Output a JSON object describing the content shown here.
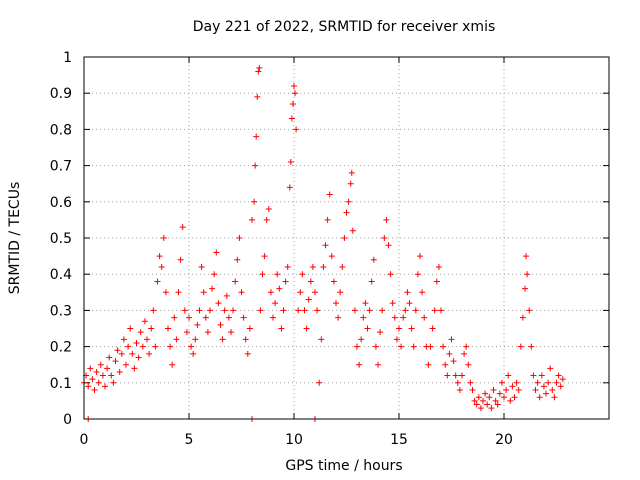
{
  "chart_data": {
    "type": "scatter",
    "title": "Day 221 of 2022, SRMTID for receiver xmis",
    "xlabel": "GPS time / hours",
    "ylabel": "SRMTID / TECUs",
    "xlim": [
      0,
      25
    ],
    "ylim": [
      0,
      1
    ],
    "xticks": [
      0,
      5,
      10,
      15,
      20
    ],
    "yticks": [
      0,
      0.1,
      0.2,
      0.3,
      0.4,
      0.5,
      0.6,
      0.7,
      0.8,
      0.9,
      1
    ],
    "xtick_labels": [
      "0",
      "5",
      "10",
      "15",
      "20"
    ],
    "ytick_labels": [
      "0",
      "0.1",
      "0.2",
      "0.3",
      "0.4",
      "0.5",
      "0.6",
      "0.7",
      "0.8",
      "0.9",
      "1"
    ],
    "grid": true,
    "marker": "+",
    "color": "#ff0000",
    "series": [
      {
        "name": "SRMTID",
        "points": [
          [
            0.0,
            0.1
          ],
          [
            0.1,
            0.12
          ],
          [
            0.2,
            0.09
          ],
          [
            0.3,
            0.14
          ],
          [
            0.4,
            0.11
          ],
          [
            0.5,
            0.08
          ],
          [
            0.6,
            0.13
          ],
          [
            0.7,
            0.1
          ],
          [
            0.8,
            0.15
          ],
          [
            0.9,
            0.12
          ],
          [
            1.0,
            0.09
          ],
          [
            1.1,
            0.14
          ],
          [
            1.2,
            0.17
          ],
          [
            1.3,
            0.12
          ],
          [
            1.4,
            0.1
          ],
          [
            1.5,
            0.16
          ],
          [
            1.6,
            0.19
          ],
          [
            1.7,
            0.13
          ],
          [
            1.8,
            0.18
          ],
          [
            1.9,
            0.22
          ],
          [
            2.0,
            0.15
          ],
          [
            2.1,
            0.2
          ],
          [
            2.2,
            0.25
          ],
          [
            2.3,
            0.18
          ],
          [
            2.4,
            0.14
          ],
          [
            2.5,
            0.21
          ],
          [
            2.6,
            0.17
          ],
          [
            2.7,
            0.24
          ],
          [
            2.8,
            0.2
          ],
          [
            2.9,
            0.27
          ],
          [
            3.0,
            0.22
          ],
          [
            3.1,
            0.18
          ],
          [
            3.2,
            0.25
          ],
          [
            3.3,
            0.3
          ],
          [
            3.4,
            0.2
          ],
          [
            3.5,
            0.38
          ],
          [
            3.6,
            0.45
          ],
          [
            3.7,
            0.42
          ],
          [
            3.8,
            0.5
          ],
          [
            3.9,
            0.35
          ],
          [
            4.0,
            0.25
          ],
          [
            4.1,
            0.2
          ],
          [
            4.2,
            0.15
          ],
          [
            4.3,
            0.28
          ],
          [
            4.4,
            0.22
          ],
          [
            4.5,
            0.35
          ],
          [
            4.6,
            0.44
          ],
          [
            4.7,
            0.53
          ],
          [
            4.8,
            0.3
          ],
          [
            4.9,
            0.24
          ],
          [
            5.0,
            0.28
          ],
          [
            5.1,
            0.2
          ],
          [
            5.2,
            0.18
          ],
          [
            5.3,
            0.22
          ],
          [
            5.4,
            0.26
          ],
          [
            5.5,
            0.3
          ],
          [
            5.6,
            0.42
          ],
          [
            5.7,
            0.35
          ],
          [
            5.8,
            0.28
          ],
          [
            5.9,
            0.24
          ],
          [
            6.0,
            0.3
          ],
          [
            6.1,
            0.36
          ],
          [
            6.2,
            0.4
          ],
          [
            6.3,
            0.46
          ],
          [
            6.4,
            0.32
          ],
          [
            6.5,
            0.26
          ],
          [
            6.6,
            0.22
          ],
          [
            6.7,
            0.3
          ],
          [
            6.8,
            0.34
          ],
          [
            6.9,
            0.28
          ],
          [
            7.0,
            0.24
          ],
          [
            7.1,
            0.3
          ],
          [
            7.2,
            0.38
          ],
          [
            7.3,
            0.44
          ],
          [
            7.4,
            0.5
          ],
          [
            7.5,
            0.35
          ],
          [
            7.6,
            0.28
          ],
          [
            7.7,
            0.22
          ],
          [
            7.8,
            0.18
          ],
          [
            7.9,
            0.25
          ],
          [
            8.0,
            0.55
          ],
          [
            8.1,
            0.6
          ],
          [
            8.15,
            0.7
          ],
          [
            8.2,
            0.78
          ],
          [
            8.25,
            0.89
          ],
          [
            8.3,
            0.96
          ],
          [
            8.35,
            0.97
          ],
          [
            8.4,
            0.3
          ],
          [
            8.5,
            0.4
          ],
          [
            8.6,
            0.45
          ],
          [
            8.7,
            0.55
          ],
          [
            8.8,
            0.58
          ],
          [
            8.9,
            0.35
          ],
          [
            9.0,
            0.28
          ],
          [
            9.1,
            0.32
          ],
          [
            9.2,
            0.4
          ],
          [
            9.3,
            0.36
          ],
          [
            9.4,
            0.25
          ],
          [
            9.5,
            0.3
          ],
          [
            9.6,
            0.38
          ],
          [
            9.7,
            0.42
          ],
          [
            9.8,
            0.64
          ],
          [
            9.85,
            0.71
          ],
          [
            9.9,
            0.83
          ],
          [
            9.95,
            0.87
          ],
          [
            10.0,
            0.92
          ],
          [
            10.05,
            0.9
          ],
          [
            10.1,
            0.8
          ],
          [
            10.2,
            0.3
          ],
          [
            10.3,
            0.35
          ],
          [
            10.4,
            0.4
          ],
          [
            10.5,
            0.3
          ],
          [
            10.6,
            0.25
          ],
          [
            10.7,
            0.33
          ],
          [
            10.8,
            0.38
          ],
          [
            10.9,
            0.42
          ],
          [
            11.0,
            0.35
          ],
          [
            11.1,
            0.3
          ],
          [
            11.2,
            0.1
          ],
          [
            11.3,
            0.22
          ],
          [
            11.4,
            0.42
          ],
          [
            11.5,
            0.48
          ],
          [
            11.6,
            0.55
          ],
          [
            11.7,
            0.62
          ],
          [
            11.8,
            0.45
          ],
          [
            11.9,
            0.38
          ],
          [
            12.0,
            0.32
          ],
          [
            12.1,
            0.28
          ],
          [
            12.2,
            0.35
          ],
          [
            12.3,
            0.42
          ],
          [
            12.4,
            0.5
          ],
          [
            12.5,
            0.57
          ],
          [
            12.6,
            0.6
          ],
          [
            12.7,
            0.65
          ],
          [
            12.75,
            0.68
          ],
          [
            12.8,
            0.52
          ],
          [
            12.9,
            0.3
          ],
          [
            13.0,
            0.2
          ],
          [
            13.1,
            0.15
          ],
          [
            13.2,
            0.22
          ],
          [
            13.3,
            0.28
          ],
          [
            13.4,
            0.32
          ],
          [
            13.5,
            0.25
          ],
          [
            13.6,
            0.3
          ],
          [
            13.7,
            0.38
          ],
          [
            13.8,
            0.44
          ],
          [
            13.9,
            0.2
          ],
          [
            14.0,
            0.15
          ],
          [
            14.1,
            0.24
          ],
          [
            14.2,
            0.3
          ],
          [
            14.3,
            0.5
          ],
          [
            14.4,
            0.55
          ],
          [
            14.5,
            0.48
          ],
          [
            14.6,
            0.4
          ],
          [
            14.7,
            0.32
          ],
          [
            14.8,
            0.28
          ],
          [
            14.9,
            0.22
          ],
          [
            15.0,
            0.25
          ],
          [
            15.1,
            0.2
          ],
          [
            15.2,
            0.28
          ],
          [
            15.3,
            0.3
          ],
          [
            15.4,
            0.35
          ],
          [
            15.5,
            0.32
          ],
          [
            15.6,
            0.25
          ],
          [
            15.7,
            0.2
          ],
          [
            15.8,
            0.3
          ],
          [
            15.9,
            0.4
          ],
          [
            16.0,
            0.45
          ],
          [
            16.1,
            0.35
          ],
          [
            16.2,
            0.28
          ],
          [
            16.3,
            0.2
          ],
          [
            16.4,
            0.15
          ],
          [
            16.5,
            0.2
          ],
          [
            16.6,
            0.25
          ],
          [
            16.7,
            0.3
          ],
          [
            16.8,
            0.38
          ],
          [
            16.9,
            0.42
          ],
          [
            17.0,
            0.3
          ],
          [
            17.1,
            0.2
          ],
          [
            17.2,
            0.15
          ],
          [
            17.3,
            0.12
          ],
          [
            17.4,
            0.18
          ],
          [
            17.5,
            0.22
          ],
          [
            17.6,
            0.16
          ],
          [
            17.7,
            0.12
          ],
          [
            17.8,
            0.1
          ],
          [
            17.9,
            0.08
          ],
          [
            18.0,
            0.12
          ],
          [
            18.1,
            0.18
          ],
          [
            18.2,
            0.2
          ],
          [
            18.3,
            0.15
          ],
          [
            18.4,
            0.1
          ],
          [
            18.5,
            0.08
          ],
          [
            18.6,
            0.05
          ],
          [
            18.7,
            0.04
          ],
          [
            18.8,
            0.06
          ],
          [
            18.9,
            0.03
          ],
          [
            19.0,
            0.05
          ],
          [
            19.1,
            0.07
          ],
          [
            19.2,
            0.04
          ],
          [
            19.3,
            0.06
          ],
          [
            19.4,
            0.03
          ],
          [
            19.5,
            0.08
          ],
          [
            19.6,
            0.05
          ],
          [
            19.7,
            0.04
          ],
          [
            19.8,
            0.07
          ],
          [
            19.9,
            0.1
          ],
          [
            20.0,
            0.06
          ],
          [
            20.1,
            0.08
          ],
          [
            20.2,
            0.12
          ],
          [
            20.3,
            0.05
          ],
          [
            20.4,
            0.09
          ],
          [
            20.5,
            0.06
          ],
          [
            20.6,
            0.1
          ],
          [
            20.7,
            0.08
          ],
          [
            20.8,
            0.2
          ],
          [
            20.9,
            0.28
          ],
          [
            21.0,
            0.36
          ],
          [
            21.05,
            0.45
          ],
          [
            21.1,
            0.4
          ],
          [
            21.2,
            0.3
          ],
          [
            21.3,
            0.2
          ],
          [
            21.4,
            0.12
          ],
          [
            21.5,
            0.08
          ],
          [
            21.6,
            0.1
          ],
          [
            21.7,
            0.06
          ],
          [
            21.8,
            0.12
          ],
          [
            21.9,
            0.09
          ],
          [
            22.0,
            0.07
          ],
          [
            22.1,
            0.1
          ],
          [
            22.2,
            0.14
          ],
          [
            22.3,
            0.08
          ],
          [
            22.4,
            0.06
          ],
          [
            22.5,
            0.1
          ],
          [
            22.6,
            0.12
          ],
          [
            22.7,
            0.09
          ],
          [
            22.8,
            0.11
          ]
        ]
      }
    ],
    "zero_markers": [
      0.2,
      8.0,
      11.0
    ]
  }
}
